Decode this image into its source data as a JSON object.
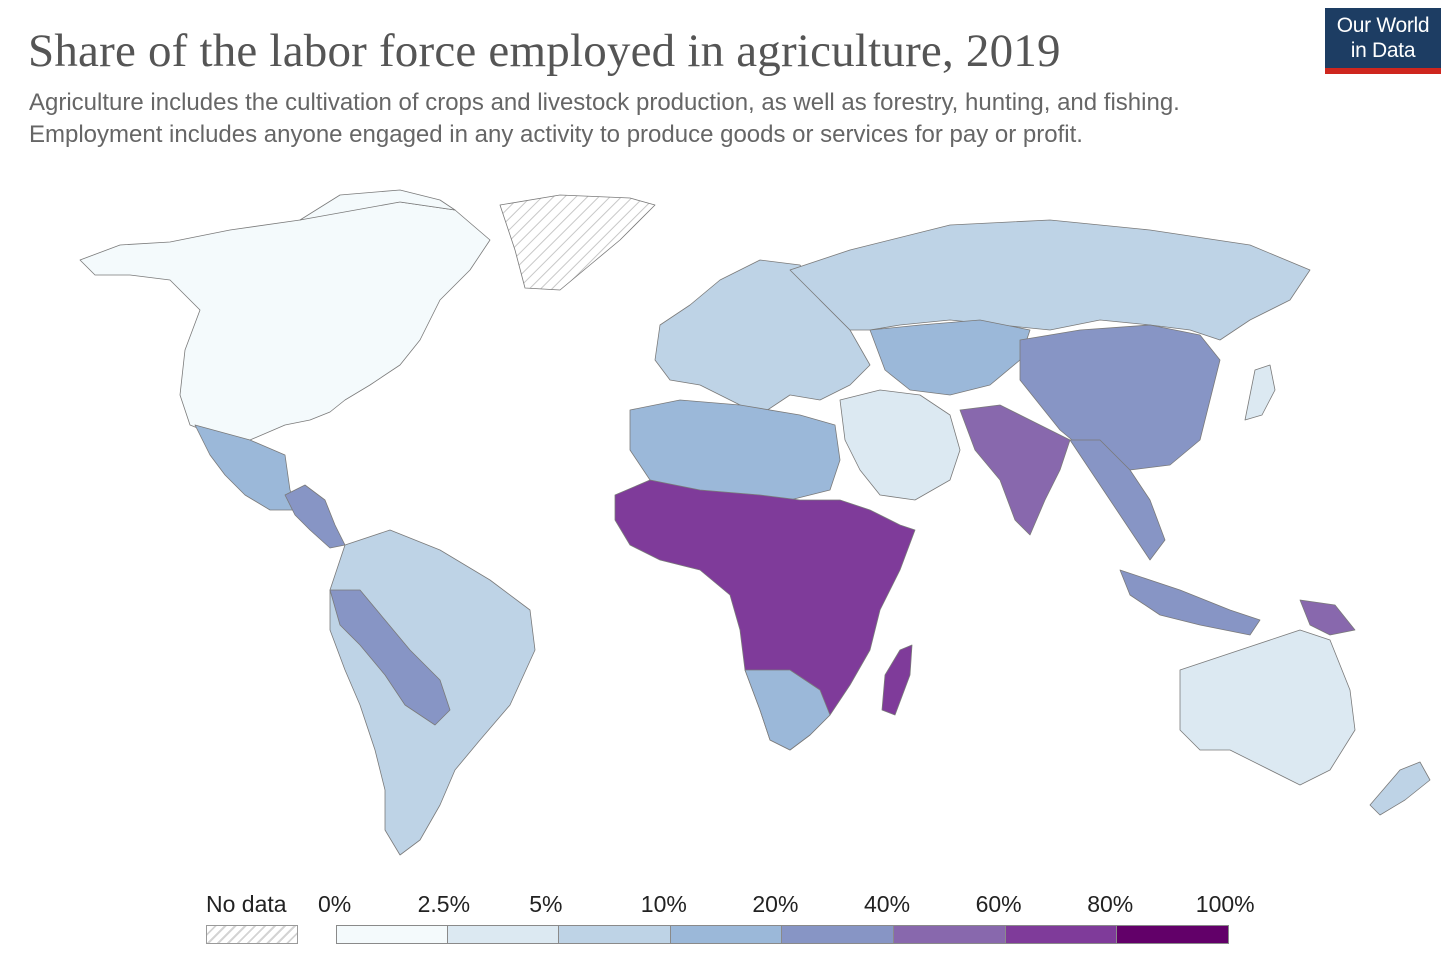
{
  "title": "Share of the labor force employed in agriculture, 2019",
  "subtitle_line1": "Agriculture includes the cultivation of crops and livestock production, as well as forestry, hunting, and fishing.",
  "subtitle_line2": "Employment includes anyone engaged in any activity to produce goods or services for pay or profit.",
  "logo": {
    "line1": "Our World",
    "line2": "in Data",
    "bg_color": "#1d3d63",
    "accent_color": "#ce261e"
  },
  "legend": {
    "no_data_label": "No data",
    "bins": [
      {
        "label": "0%",
        "color": "#f4fafc"
      },
      {
        "label": "2.5%",
        "color": "#dce9f2"
      },
      {
        "label": "5%",
        "color": "#bed3e6"
      },
      {
        "label": "10%",
        "color": "#9bb8d9"
      },
      {
        "label": "20%",
        "color": "#8795c5"
      },
      {
        "label": "40%",
        "color": "#8868ad"
      },
      {
        "label": "60%",
        "color": "#7f3b9a"
      },
      {
        "label": "80%",
        "color": "#620069"
      }
    ],
    "end_label": "100%"
  },
  "map_regions": [
    {
      "name": "north-america",
      "color": "#f4fafc"
    },
    {
      "name": "greenland",
      "color": "no-data"
    },
    {
      "name": "mexico",
      "color": "#9bb8d9"
    },
    {
      "name": "central-america",
      "color": "#8795c5"
    },
    {
      "name": "south-america",
      "color": "#bed3e6"
    },
    {
      "name": "europe",
      "color": "#bed3e6"
    },
    {
      "name": "russia",
      "color": "#bed3e6"
    },
    {
      "name": "north-africa",
      "color": "#9bb8d9"
    },
    {
      "name": "sub-saharan-africa",
      "color": "#7f3b9a"
    },
    {
      "name": "middle-east",
      "color": "#dce9f2"
    },
    {
      "name": "india",
      "color": "#8868ad"
    },
    {
      "name": "china",
      "color": "#8795c5"
    },
    {
      "name": "southeast-asia",
      "color": "#8795c5"
    },
    {
      "name": "australia",
      "color": "#dce9f2"
    }
  ]
}
